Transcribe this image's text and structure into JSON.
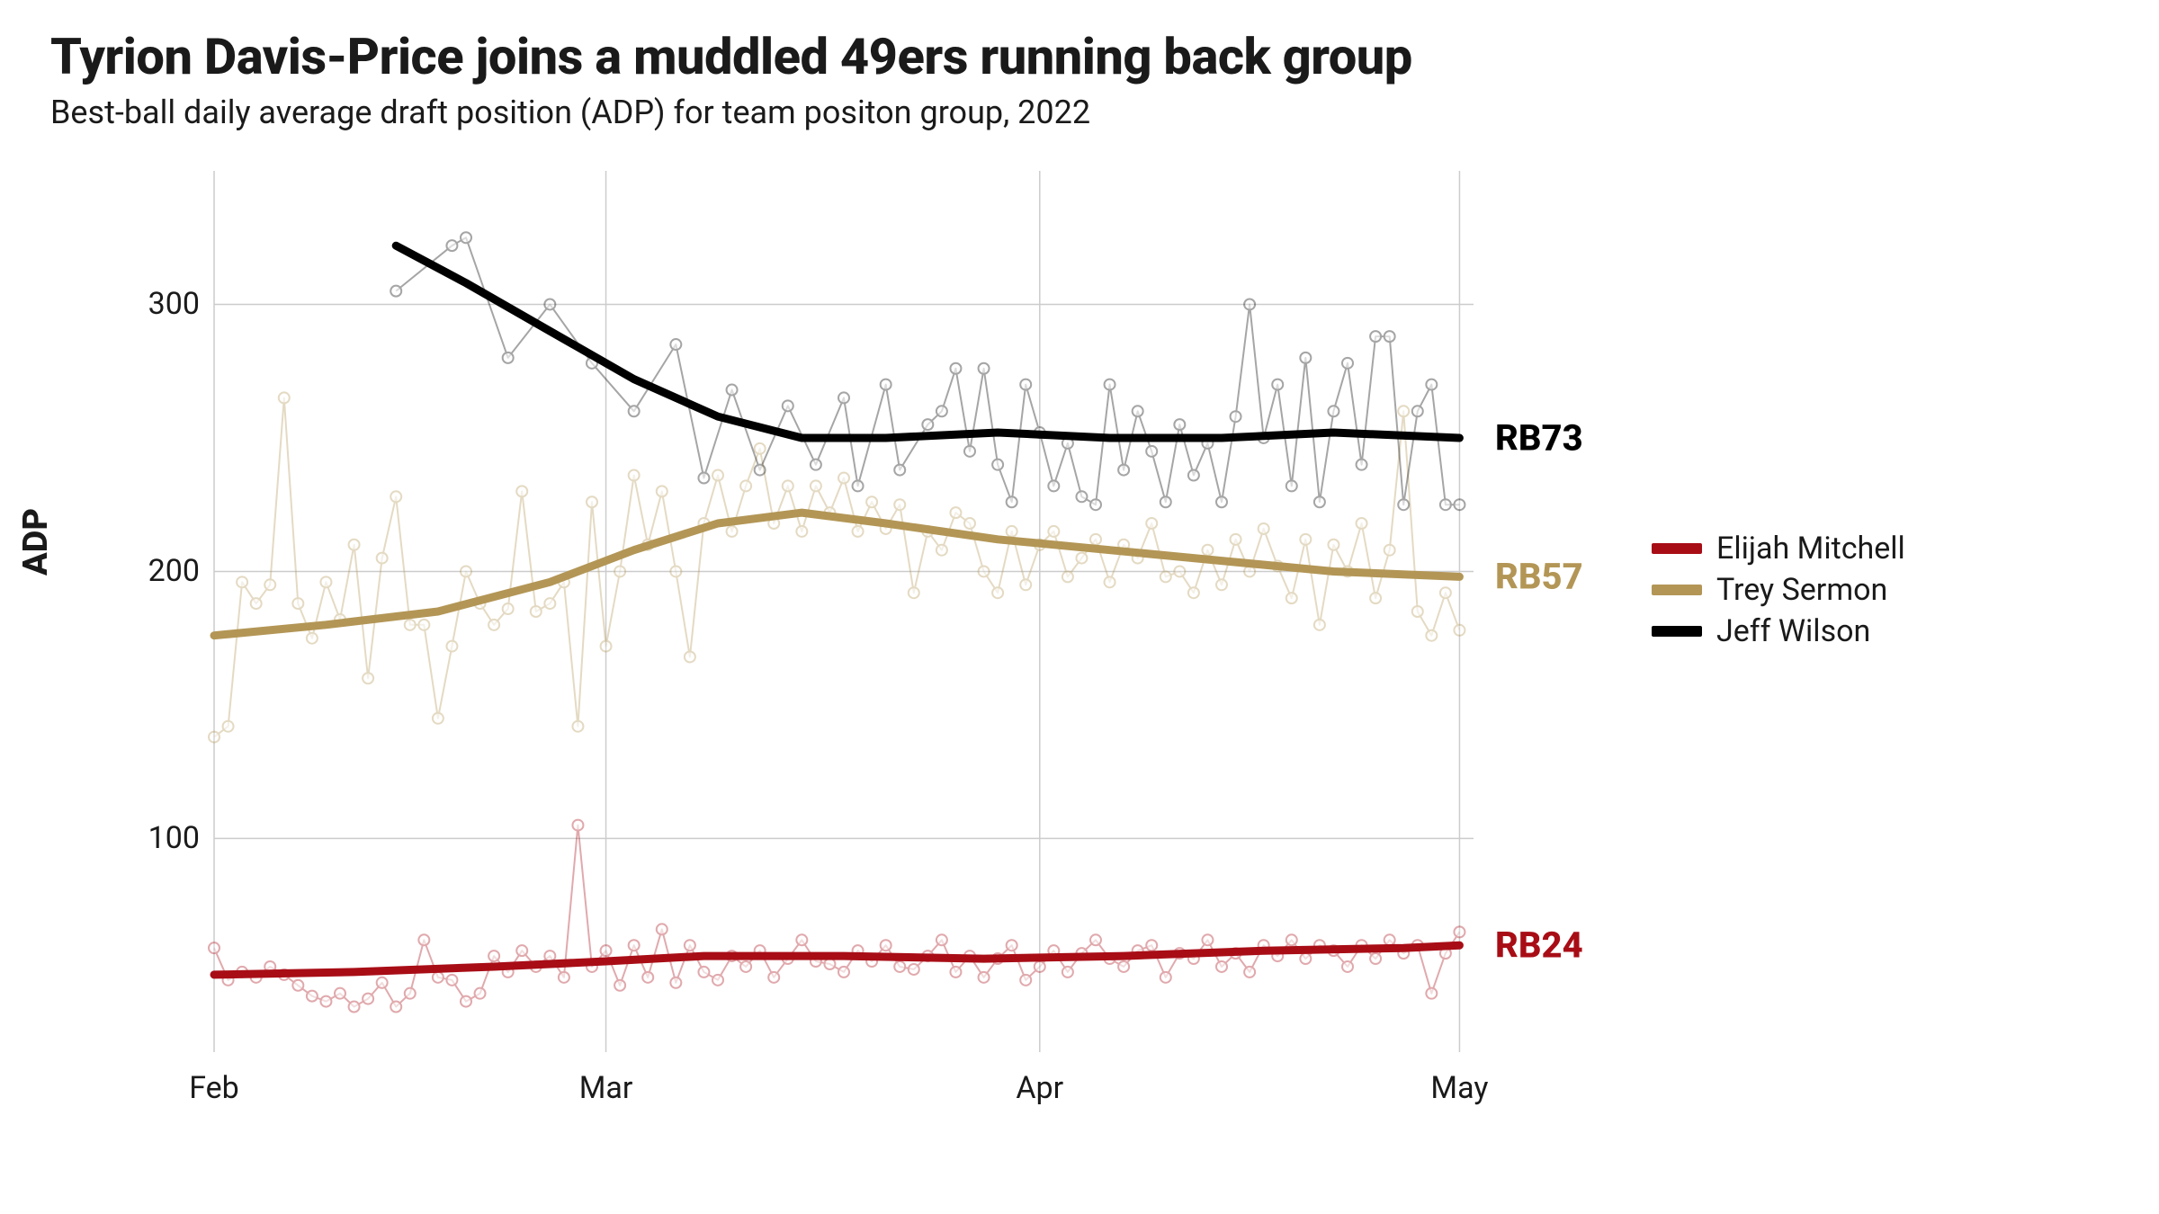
{
  "title": "Tyrion Davis-Price joins a muddled 49ers running back group",
  "subtitle": "Best-ball daily average draft position (ADP) for team positon group, 2022",
  "ylabel": "ADP",
  "chart": {
    "type": "line",
    "background_color": "#ffffff",
    "grid_color": "#cccccc",
    "grid_width": 1.5,
    "x_domain": [
      0,
      90
    ],
    "y_domain": [
      350,
      20
    ],
    "y_ticks": [
      100,
      200,
      300
    ],
    "x_ticks": [
      {
        "pos": 0,
        "label": "Feb"
      },
      {
        "pos": 28,
        "label": "Mar"
      },
      {
        "pos": 59,
        "label": "Apr"
      },
      {
        "pos": 89,
        "label": "May"
      }
    ],
    "title_fontsize": 56,
    "subtitle_fontsize": 36,
    "tick_fontsize": 34,
    "ylabel_fontsize": 38,
    "endlabel_fontsize": 40,
    "legend_fontsize": 34,
    "smooth_line_width": 9,
    "raw_line_width": 2,
    "marker_radius": 6,
    "marker_stroke_width": 2,
    "raw_opacity": 0.35,
    "series": [
      {
        "name": "Elijah Mitchell",
        "color": "#a80d16",
        "end_label": "RB24",
        "smooth": [
          {
            "x": 0,
            "y": 49
          },
          {
            "x": 10,
            "y": 50
          },
          {
            "x": 20,
            "y": 52
          },
          {
            "x": 28,
            "y": 54
          },
          {
            "x": 35,
            "y": 56
          },
          {
            "x": 45,
            "y": 56
          },
          {
            "x": 55,
            "y": 55
          },
          {
            "x": 65,
            "y": 56
          },
          {
            "x": 75,
            "y": 58
          },
          {
            "x": 85,
            "y": 59
          },
          {
            "x": 89,
            "y": 60
          }
        ],
        "raw": [
          {
            "x": 0,
            "y": 59
          },
          {
            "x": 1,
            "y": 47
          },
          {
            "x": 2,
            "y": 50
          },
          {
            "x": 3,
            "y": 48
          },
          {
            "x": 4,
            "y": 52
          },
          {
            "x": 5,
            "y": 49
          },
          {
            "x": 6,
            "y": 45
          },
          {
            "x": 7,
            "y": 41
          },
          {
            "x": 8,
            "y": 39
          },
          {
            "x": 9,
            "y": 42
          },
          {
            "x": 10,
            "y": 37
          },
          {
            "x": 11,
            "y": 40
          },
          {
            "x": 12,
            "y": 46
          },
          {
            "x": 13,
            "y": 37
          },
          {
            "x": 14,
            "y": 42
          },
          {
            "x": 15,
            "y": 62
          },
          {
            "x": 16,
            "y": 48
          },
          {
            "x": 17,
            "y": 47
          },
          {
            "x": 18,
            "y": 39
          },
          {
            "x": 19,
            "y": 42
          },
          {
            "x": 20,
            "y": 56
          },
          {
            "x": 21,
            "y": 50
          },
          {
            "x": 22,
            "y": 58
          },
          {
            "x": 23,
            "y": 52
          },
          {
            "x": 24,
            "y": 56
          },
          {
            "x": 25,
            "y": 48
          },
          {
            "x": 26,
            "y": 105
          },
          {
            "x": 27,
            "y": 52
          },
          {
            "x": 28,
            "y": 58
          },
          {
            "x": 29,
            "y": 45
          },
          {
            "x": 30,
            "y": 60
          },
          {
            "x": 31,
            "y": 48
          },
          {
            "x": 32,
            "y": 66
          },
          {
            "x": 33,
            "y": 46
          },
          {
            "x": 34,
            "y": 60
          },
          {
            "x": 35,
            "y": 50
          },
          {
            "x": 36,
            "y": 47
          },
          {
            "x": 37,
            "y": 56
          },
          {
            "x": 38,
            "y": 52
          },
          {
            "x": 39,
            "y": 58
          },
          {
            "x": 40,
            "y": 48
          },
          {
            "x": 41,
            "y": 55
          },
          {
            "x": 42,
            "y": 62
          },
          {
            "x": 43,
            "y": 54
          },
          {
            "x": 44,
            "y": 53
          },
          {
            "x": 45,
            "y": 50
          },
          {
            "x": 46,
            "y": 58
          },
          {
            "x": 47,
            "y": 54
          },
          {
            "x": 48,
            "y": 60
          },
          {
            "x": 49,
            "y": 52
          },
          {
            "x": 50,
            "y": 51
          },
          {
            "x": 51,
            "y": 56
          },
          {
            "x": 52,
            "y": 62
          },
          {
            "x": 53,
            "y": 50
          },
          {
            "x": 54,
            "y": 56
          },
          {
            "x": 55,
            "y": 48
          },
          {
            "x": 56,
            "y": 55
          },
          {
            "x": 57,
            "y": 60
          },
          {
            "x": 58,
            "y": 47
          },
          {
            "x": 59,
            "y": 52
          },
          {
            "x": 60,
            "y": 58
          },
          {
            "x": 61,
            "y": 50
          },
          {
            "x": 62,
            "y": 57
          },
          {
            "x": 63,
            "y": 62
          },
          {
            "x": 64,
            "y": 55
          },
          {
            "x": 65,
            "y": 52
          },
          {
            "x": 66,
            "y": 58
          },
          {
            "x": 67,
            "y": 60
          },
          {
            "x": 68,
            "y": 48
          },
          {
            "x": 69,
            "y": 57
          },
          {
            "x": 70,
            "y": 55
          },
          {
            "x": 71,
            "y": 62
          },
          {
            "x": 72,
            "y": 52
          },
          {
            "x": 73,
            "y": 57
          },
          {
            "x": 74,
            "y": 50
          },
          {
            "x": 75,
            "y": 60
          },
          {
            "x": 76,
            "y": 56
          },
          {
            "x": 77,
            "y": 62
          },
          {
            "x": 78,
            "y": 55
          },
          {
            "x": 79,
            "y": 60
          },
          {
            "x": 80,
            "y": 58
          },
          {
            "x": 81,
            "y": 52
          },
          {
            "x": 82,
            "y": 60
          },
          {
            "x": 83,
            "y": 55
          },
          {
            "x": 84,
            "y": 62
          },
          {
            "x": 85,
            "y": 57
          },
          {
            "x": 86,
            "y": 60
          },
          {
            "x": 87,
            "y": 42
          },
          {
            "x": 88,
            "y": 57
          },
          {
            "x": 89,
            "y": 65
          }
        ]
      },
      {
        "name": "Trey Sermon",
        "color": "#b39656",
        "end_label": "RB57",
        "smooth": [
          {
            "x": 0,
            "y": 176
          },
          {
            "x": 8,
            "y": 180
          },
          {
            "x": 16,
            "y": 185
          },
          {
            "x": 24,
            "y": 196
          },
          {
            "x": 30,
            "y": 208
          },
          {
            "x": 36,
            "y": 218
          },
          {
            "x": 42,
            "y": 222
          },
          {
            "x": 48,
            "y": 218
          },
          {
            "x": 56,
            "y": 212
          },
          {
            "x": 64,
            "y": 208
          },
          {
            "x": 72,
            "y": 204
          },
          {
            "x": 80,
            "y": 200
          },
          {
            "x": 89,
            "y": 198
          }
        ],
        "raw": [
          {
            "x": 0,
            "y": 138
          },
          {
            "x": 1,
            "y": 142
          },
          {
            "x": 2,
            "y": 196
          },
          {
            "x": 3,
            "y": 188
          },
          {
            "x": 4,
            "y": 195
          },
          {
            "x": 5,
            "y": 265
          },
          {
            "x": 6,
            "y": 188
          },
          {
            "x": 7,
            "y": 175
          },
          {
            "x": 8,
            "y": 196
          },
          {
            "x": 9,
            "y": 182
          },
          {
            "x": 10,
            "y": 210
          },
          {
            "x": 11,
            "y": 160
          },
          {
            "x": 12,
            "y": 205
          },
          {
            "x": 13,
            "y": 228
          },
          {
            "x": 14,
            "y": 180
          },
          {
            "x": 15,
            "y": 180
          },
          {
            "x": 16,
            "y": 145
          },
          {
            "x": 17,
            "y": 172
          },
          {
            "x": 18,
            "y": 200
          },
          {
            "x": 19,
            "y": 188
          },
          {
            "x": 20,
            "y": 180
          },
          {
            "x": 21,
            "y": 186
          },
          {
            "x": 22,
            "y": 230
          },
          {
            "x": 23,
            "y": 185
          },
          {
            "x": 24,
            "y": 188
          },
          {
            "x": 25,
            "y": 196
          },
          {
            "x": 26,
            "y": 142
          },
          {
            "x": 27,
            "y": 226
          },
          {
            "x": 28,
            "y": 172
          },
          {
            "x": 29,
            "y": 200
          },
          {
            "x": 30,
            "y": 236
          },
          {
            "x": 31,
            "y": 210
          },
          {
            "x": 32,
            "y": 230
          },
          {
            "x": 33,
            "y": 200
          },
          {
            "x": 34,
            "y": 168
          },
          {
            "x": 35,
            "y": 218
          },
          {
            "x": 36,
            "y": 236
          },
          {
            "x": 37,
            "y": 215
          },
          {
            "x": 38,
            "y": 232
          },
          {
            "x": 39,
            "y": 246
          },
          {
            "x": 40,
            "y": 218
          },
          {
            "x": 41,
            "y": 232
          },
          {
            "x": 42,
            "y": 215
          },
          {
            "x": 43,
            "y": 232
          },
          {
            "x": 44,
            "y": 222
          },
          {
            "x": 45,
            "y": 235
          },
          {
            "x": 46,
            "y": 215
          },
          {
            "x": 47,
            "y": 226
          },
          {
            "x": 48,
            "y": 216
          },
          {
            "x": 49,
            "y": 225
          },
          {
            "x": 50,
            "y": 192
          },
          {
            "x": 51,
            "y": 215
          },
          {
            "x": 52,
            "y": 208
          },
          {
            "x": 53,
            "y": 222
          },
          {
            "x": 54,
            "y": 218
          },
          {
            "x": 55,
            "y": 200
          },
          {
            "x": 56,
            "y": 192
          },
          {
            "x": 57,
            "y": 215
          },
          {
            "x": 58,
            "y": 195
          },
          {
            "x": 59,
            "y": 210
          },
          {
            "x": 60,
            "y": 215
          },
          {
            "x": 61,
            "y": 198
          },
          {
            "x": 62,
            "y": 205
          },
          {
            "x": 63,
            "y": 212
          },
          {
            "x": 64,
            "y": 196
          },
          {
            "x": 65,
            "y": 210
          },
          {
            "x": 66,
            "y": 205
          },
          {
            "x": 67,
            "y": 218
          },
          {
            "x": 68,
            "y": 198
          },
          {
            "x": 69,
            "y": 200
          },
          {
            "x": 70,
            "y": 192
          },
          {
            "x": 71,
            "y": 208
          },
          {
            "x": 72,
            "y": 195
          },
          {
            "x": 73,
            "y": 212
          },
          {
            "x": 74,
            "y": 200
          },
          {
            "x": 75,
            "y": 216
          },
          {
            "x": 76,
            "y": 202
          },
          {
            "x": 77,
            "y": 190
          },
          {
            "x": 78,
            "y": 212
          },
          {
            "x": 79,
            "y": 180
          },
          {
            "x": 80,
            "y": 210
          },
          {
            "x": 81,
            "y": 200
          },
          {
            "x": 82,
            "y": 218
          },
          {
            "x": 83,
            "y": 190
          },
          {
            "x": 84,
            "y": 208
          },
          {
            "x": 85,
            "y": 260
          },
          {
            "x": 86,
            "y": 185
          },
          {
            "x": 87,
            "y": 176
          },
          {
            "x": 88,
            "y": 192
          },
          {
            "x": 89,
            "y": 178
          }
        ]
      },
      {
        "name": "Jeff Wilson",
        "color": "#000000",
        "end_label": "RB73",
        "smooth": [
          {
            "x": 13,
            "y": 322
          },
          {
            "x": 18,
            "y": 308
          },
          {
            "x": 24,
            "y": 290
          },
          {
            "x": 30,
            "y": 272
          },
          {
            "x": 36,
            "y": 258
          },
          {
            "x": 42,
            "y": 250
          },
          {
            "x": 48,
            "y": 250
          },
          {
            "x": 56,
            "y": 252
          },
          {
            "x": 64,
            "y": 250
          },
          {
            "x": 72,
            "y": 250
          },
          {
            "x": 80,
            "y": 252
          },
          {
            "x": 89,
            "y": 250
          }
        ],
        "raw": [
          {
            "x": 13,
            "y": 305
          },
          {
            "x": 17,
            "y": 322
          },
          {
            "x": 18,
            "y": 325
          },
          {
            "x": 21,
            "y": 280
          },
          {
            "x": 24,
            "y": 300
          },
          {
            "x": 27,
            "y": 278
          },
          {
            "x": 30,
            "y": 260
          },
          {
            "x": 33,
            "y": 285
          },
          {
            "x": 35,
            "y": 235
          },
          {
            "x": 37,
            "y": 268
          },
          {
            "x": 39,
            "y": 238
          },
          {
            "x": 41,
            "y": 262
          },
          {
            "x": 43,
            "y": 240
          },
          {
            "x": 45,
            "y": 265
          },
          {
            "x": 46,
            "y": 232
          },
          {
            "x": 48,
            "y": 270
          },
          {
            "x": 49,
            "y": 238
          },
          {
            "x": 51,
            "y": 255
          },
          {
            "x": 52,
            "y": 260
          },
          {
            "x": 53,
            "y": 276
          },
          {
            "x": 54,
            "y": 245
          },
          {
            "x": 55,
            "y": 276
          },
          {
            "x": 56,
            "y": 240
          },
          {
            "x": 57,
            "y": 226
          },
          {
            "x": 58,
            "y": 270
          },
          {
            "x": 59,
            "y": 252
          },
          {
            "x": 60,
            "y": 232
          },
          {
            "x": 61,
            "y": 248
          },
          {
            "x": 62,
            "y": 228
          },
          {
            "x": 63,
            "y": 225
          },
          {
            "x": 64,
            "y": 270
          },
          {
            "x": 65,
            "y": 238
          },
          {
            "x": 66,
            "y": 260
          },
          {
            "x": 67,
            "y": 245
          },
          {
            "x": 68,
            "y": 226
          },
          {
            "x": 69,
            "y": 255
          },
          {
            "x": 70,
            "y": 236
          },
          {
            "x": 71,
            "y": 248
          },
          {
            "x": 72,
            "y": 226
          },
          {
            "x": 73,
            "y": 258
          },
          {
            "x": 74,
            "y": 300
          },
          {
            "x": 75,
            "y": 250
          },
          {
            "x": 76,
            "y": 270
          },
          {
            "x": 77,
            "y": 232
          },
          {
            "x": 78,
            "y": 280
          },
          {
            "x": 79,
            "y": 226
          },
          {
            "x": 80,
            "y": 260
          },
          {
            "x": 81,
            "y": 278
          },
          {
            "x": 82,
            "y": 240
          },
          {
            "x": 83,
            "y": 288
          },
          {
            "x": 84,
            "y": 288
          },
          {
            "x": 85,
            "y": 225
          },
          {
            "x": 86,
            "y": 260
          },
          {
            "x": 87,
            "y": 270
          },
          {
            "x": 88,
            "y": 225
          },
          {
            "x": 89,
            "y": 225
          }
        ]
      }
    ],
    "legend": {
      "items": [
        {
          "label": "Elijah Mitchell",
          "color": "#a80d16"
        },
        {
          "label": "Trey Sermon",
          "color": "#b39656"
        },
        {
          "label": "Jeff Wilson",
          "color": "#000000"
        }
      ]
    }
  }
}
